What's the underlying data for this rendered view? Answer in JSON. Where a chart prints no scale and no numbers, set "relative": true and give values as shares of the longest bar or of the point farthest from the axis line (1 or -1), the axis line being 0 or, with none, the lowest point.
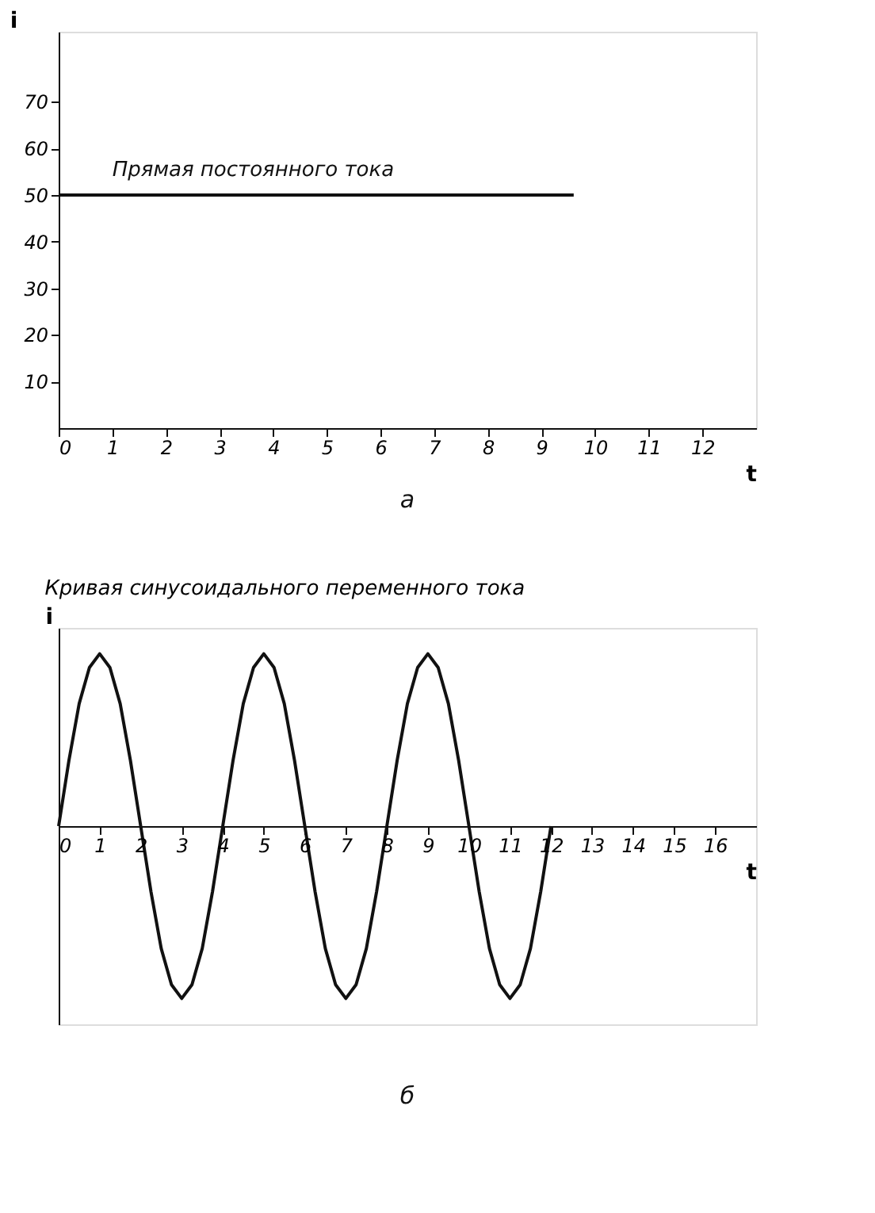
{
  "chart_data": [
    {
      "type": "line",
      "xlabel": "t",
      "ylabel": "i",
      "x": [
        0,
        9.6
      ],
      "series": [
        {
          "color": "#111111",
          "values": [
            50,
            50
          ]
        }
      ],
      "xlim": [
        0,
        13
      ],
      "ylim": [
        0,
        85
      ],
      "xticks": [
        0,
        1,
        2,
        3,
        4,
        5,
        6,
        7,
        8,
        9,
        10,
        11,
        12
      ],
      "yticks": [
        10,
        20,
        30,
        40,
        50,
        60,
        70
      ],
      "annotations": [
        {
          "text": "Прямая постоянного тока",
          "x": 1,
          "y": 50
        },
        "а"
      ],
      "grid": false,
      "marker": "none",
      "line_style": "solid"
    },
    {
      "type": "line",
      "title": "Кривая синусоидального переменного тока",
      "xlabel": "t",
      "ylabel": "i",
      "relative": true,
      "x": [
        0,
        0.25,
        0.5,
        0.75,
        1,
        1.25,
        1.5,
        1.75,
        2,
        2.25,
        2.5,
        2.75,
        3,
        3.25,
        3.5,
        3.75,
        4,
        4.25,
        4.5,
        4.75,
        5,
        5.25,
        5.5,
        5.75,
        6,
        6.25,
        6.5,
        6.75,
        7,
        7.25,
        7.5,
        7.75,
        8,
        8.25,
        8.5,
        8.75,
        9,
        9.25,
        9.5,
        9.75,
        10,
        10.25,
        10.5,
        10.75,
        11,
        11.25,
        11.5,
        11.75,
        12
      ],
      "series": [
        {
          "color": "#111111",
          "values": [
            0,
            0.38,
            0.71,
            0.92,
            1,
            0.92,
            0.71,
            0.38,
            0,
            -0.38,
            -0.71,
            -0.92,
            -1,
            -0.92,
            -0.71,
            -0.38,
            0,
            0.38,
            0.71,
            0.92,
            1,
            0.92,
            0.71,
            0.38,
            0,
            -0.38,
            -0.71,
            -0.92,
            -1,
            -0.92,
            -0.71,
            -0.38,
            0,
            0.38,
            0.71,
            0.92,
            1,
            0.92,
            0.71,
            0.38,
            0,
            -0.38,
            -0.71,
            -0.92,
            -1,
            -0.92,
            -0.71,
            -0.38,
            0
          ]
        }
      ],
      "xlim": [
        0,
        17
      ],
      "xticks": [
        0,
        1,
        2,
        3,
        4,
        5,
        6,
        7,
        8,
        9,
        10,
        11,
        12,
        13,
        14,
        15,
        16
      ],
      "annotations": [
        "б"
      ],
      "tick_labels": "x",
      "grid": false,
      "marker": "none",
      "line_style": "solid"
    }
  ]
}
